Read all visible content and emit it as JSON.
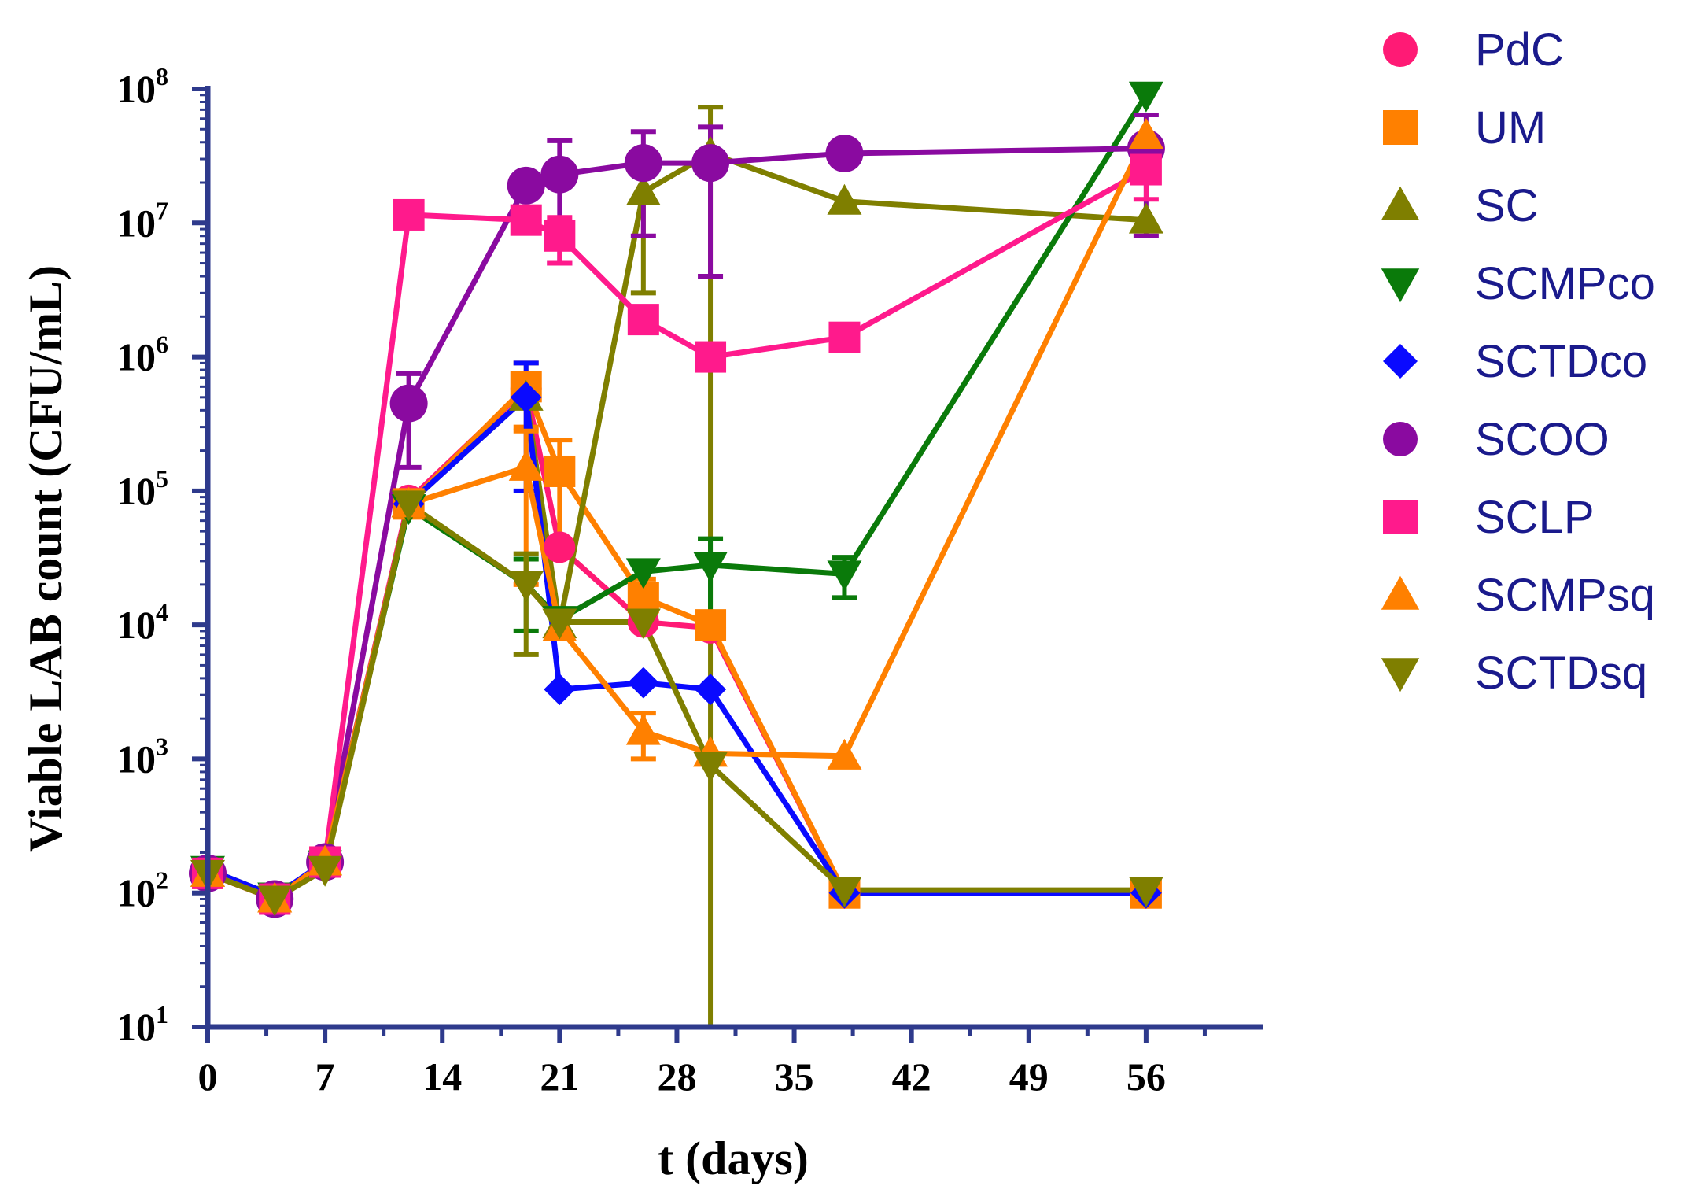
{
  "chart_data": {
    "type": "line",
    "title": "",
    "xlabel": "t (days)",
    "ylabel": "Viable LAB count (CFU/mL)",
    "xlim": [
      0,
      63
    ],
    "ylim_log10": [
      1,
      8
    ],
    "y_scale": "log10",
    "x_ticks": [
      0,
      7,
      14,
      21,
      28,
      35,
      42,
      49,
      56
    ],
    "x_tick_labels": [
      "0",
      "7",
      "14",
      "21",
      "28",
      "35",
      "42",
      "49",
      "56"
    ],
    "y_ticks": [
      1,
      2,
      3,
      4,
      5,
      6,
      7,
      8
    ],
    "y_tick_base": "10",
    "y_tick_exponents": [
      "1",
      "2",
      "3",
      "4",
      "5",
      "6",
      "7",
      "8"
    ],
    "legend_position": "right",
    "colors": {
      "axis": "#2e3a8c",
      "legend_text": "#1a1a8c"
    },
    "series": [
      {
        "name": "PdC",
        "color": "#ff1a75",
        "marker": "circle",
        "x": [
          0,
          4,
          7,
          12,
          19,
          21,
          26,
          30,
          38,
          56
        ],
        "y": [
          140,
          90,
          170,
          85000,
          580000,
          38000,
          10500,
          9500,
          100,
          100
        ]
      },
      {
        "name": "UM",
        "color": "#ff8000",
        "marker": "square",
        "x": [
          0,
          4,
          7,
          12,
          19,
          21,
          26,
          30,
          38,
          56
        ],
        "y": [
          140,
          90,
          170,
          80000,
          600000,
          140000,
          16000,
          10000,
          100,
          100
        ],
        "err": [
          null,
          null,
          null,
          null,
          300000,
          100000,
          6000,
          null,
          null,
          null
        ]
      },
      {
        "name": "SC",
        "color": "#7f7f00",
        "marker": "triangle-up",
        "x": [
          0,
          4,
          7,
          12,
          19,
          21,
          26,
          30,
          38,
          56
        ],
        "y": [
          140,
          90,
          170,
          80000,
          500000,
          10000,
          17000000,
          33000000,
          14500000,
          10500000
        ],
        "err": [
          null,
          null,
          null,
          null,
          null,
          null,
          14000000,
          40000000,
          null,
          null
        ]
      },
      {
        "name": "SCMPco",
        "color": "#0a7a0a",
        "marker": "triangle-down",
        "x": [
          0,
          4,
          7,
          12,
          19,
          21,
          26,
          30,
          38,
          56
        ],
        "y": [
          150,
          95,
          165,
          75000,
          20000,
          11000,
          25000,
          28000,
          24000,
          90000000
        ],
        "err": [
          null,
          null,
          null,
          null,
          11000,
          null,
          null,
          16000,
          8000,
          null
        ]
      },
      {
        "name": "SCTDco",
        "color": "#0a0aff",
        "marker": "diamond",
        "x": [
          0,
          4,
          7,
          12,
          19,
          21,
          26,
          30,
          38,
          56
        ],
        "y": [
          150,
          95,
          170,
          80000,
          500000,
          3300,
          3700,
          3300,
          100,
          100
        ],
        "err": [
          null,
          null,
          null,
          null,
          400000,
          null,
          null,
          null,
          null,
          null
        ]
      },
      {
        "name": "SCOO",
        "color": "#8a0aa0",
        "marker": "circle",
        "x": [
          0,
          4,
          7,
          12,
          19,
          21,
          26,
          30,
          38,
          56
        ],
        "y": [
          140,
          90,
          170,
          450000,
          19000000,
          23000000,
          28000000,
          28000000,
          33000000,
          36000000
        ],
        "err": [
          null,
          null,
          null,
          300000,
          null,
          18000000,
          20000000,
          24000000,
          null,
          28000000
        ]
      },
      {
        "name": "SCLP",
        "color": "#ff1a8c",
        "marker": "square",
        "x": [
          0,
          4,
          7,
          12,
          19,
          21,
          26,
          30,
          38,
          56
        ],
        "y": [
          140,
          90,
          170,
          11500000,
          10500000,
          8000000,
          1900000,
          1000000,
          1400000,
          25000000
        ],
        "err": [
          null,
          null,
          null,
          null,
          null,
          3000000,
          null,
          null,
          null,
          10000000
        ]
      },
      {
        "name": "SCMPsq",
        "color": "#ff8000",
        "marker": "triangle-up",
        "x": [
          0,
          4,
          7,
          12,
          19,
          21,
          26,
          30,
          38,
          56
        ],
        "y": [
          140,
          90,
          170,
          80000,
          150000,
          9500,
          1600,
          1100,
          1050,
          45000000
        ],
        "err": [
          null,
          null,
          null,
          null,
          130000,
          null,
          600,
          null,
          null,
          null
        ]
      },
      {
        "name": "SCTDsq",
        "color": "#7f7f00",
        "marker": "triangle-down",
        "x": [
          0,
          4,
          7,
          12,
          19,
          21,
          26,
          30,
          38,
          56
        ],
        "y": [
          140,
          90,
          150,
          80000,
          20000,
          10500,
          10500,
          900,
          105,
          105
        ],
        "err": [
          null,
          null,
          null,
          null,
          14000,
          null,
          null,
          null,
          null,
          null
        ]
      }
    ]
  }
}
